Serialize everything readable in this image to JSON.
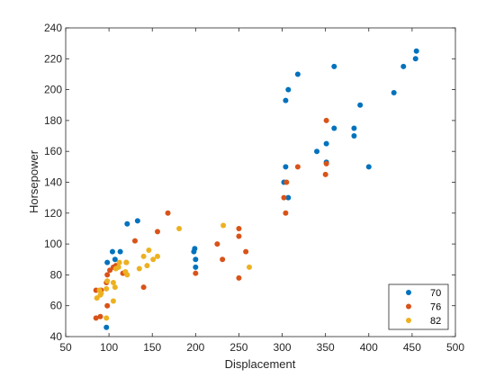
{
  "chart_data": {
    "type": "scatter",
    "title": "",
    "xlabel": "Displacement",
    "ylabel": "Horsepower",
    "xlim": [
      50,
      500
    ],
    "ylim": [
      40,
      240
    ],
    "xticks": [
      "50",
      "100",
      "150",
      "200",
      "250",
      "300",
      "350",
      "400",
      "450",
      "500"
    ],
    "yticks": [
      "40",
      "60",
      "80",
      "100",
      "120",
      "140",
      "160",
      "180",
      "200",
      "220",
      "240"
    ],
    "grid": false,
    "legend_position": "bottom-right",
    "series": [
      {
        "name": "70",
        "color": "#0072BD",
        "points": [
          [
            455,
            225
          ],
          [
            454,
            220
          ],
          [
            440,
            215
          ],
          [
            429,
            198
          ],
          [
            400,
            150
          ],
          [
            390,
            190
          ],
          [
            383,
            170
          ],
          [
            383,
            175
          ],
          [
            360,
            215
          ],
          [
            360,
            175
          ],
          [
            351,
            165
          ],
          [
            351,
            153
          ],
          [
            340,
            160
          ],
          [
            318,
            210
          ],
          [
            307,
            200
          ],
          [
            304,
            193
          ],
          [
            304,
            150
          ],
          [
            302,
            140
          ],
          [
            307,
            130
          ],
          [
            200,
            85
          ],
          [
            200,
            90
          ],
          [
            199,
            97
          ],
          [
            198,
            95
          ],
          [
            133,
            115
          ],
          [
            121,
            113
          ],
          [
            113,
            95
          ],
          [
            107,
            90
          ],
          [
            104,
            95
          ],
          [
            98,
            88
          ],
          [
            97,
            46
          ]
        ]
      },
      {
        "name": "76",
        "color": "#D95319",
        "points": [
          [
            351,
            180
          ],
          [
            350,
            145
          ],
          [
            351,
            152
          ],
          [
            318,
            150
          ],
          [
            305,
            140
          ],
          [
            304,
            120
          ],
          [
            302,
            130
          ],
          [
            258,
            95
          ],
          [
            250,
            110
          ],
          [
            250,
            105
          ],
          [
            250,
            78
          ],
          [
            231,
            90
          ],
          [
            225,
            100
          ],
          [
            200,
            81
          ],
          [
            168,
            120
          ],
          [
            156,
            108
          ],
          [
            140,
            72
          ],
          [
            130,
            102
          ],
          [
            120,
            88
          ],
          [
            116,
            81
          ],
          [
            108,
            86
          ],
          [
            105,
            85
          ],
          [
            101,
            83
          ],
          [
            98,
            80
          ],
          [
            97,
            75
          ],
          [
            98,
            60
          ],
          [
            91,
            70
          ],
          [
            90,
            53
          ],
          [
            85,
            70
          ],
          [
            85,
            52
          ]
        ]
      },
      {
        "name": "82",
        "color": "#EDB120",
        "points": [
          [
            262,
            85
          ],
          [
            232,
            112
          ],
          [
            181,
            110
          ],
          [
            156,
            92
          ],
          [
            151,
            90
          ],
          [
            146,
            96
          ],
          [
            144,
            86
          ],
          [
            140,
            92
          ],
          [
            135,
            84
          ],
          [
            121,
            80
          ],
          [
            120,
            88
          ],
          [
            119,
            82
          ],
          [
            112,
            88
          ],
          [
            111,
            85
          ],
          [
            108,
            84
          ],
          [
            107,
            72
          ],
          [
            105,
            75
          ],
          [
            105,
            63
          ],
          [
            98,
            76
          ],
          [
            97,
            71
          ],
          [
            97,
            52
          ],
          [
            91,
            68
          ],
          [
            90,
            67
          ],
          [
            89,
            70
          ],
          [
            86,
            65
          ]
        ]
      }
    ]
  }
}
